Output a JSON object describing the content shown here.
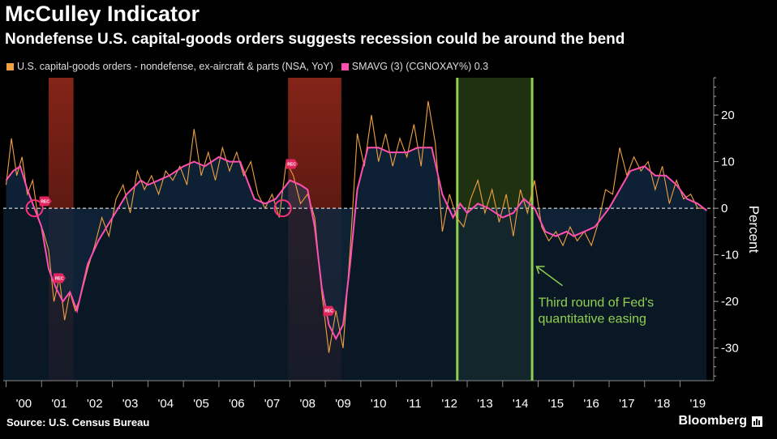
{
  "title": "McCulley Indicator",
  "subtitle": "Nondefense U.S. capital-goods orders suggests recession could be around the bend",
  "legend": [
    {
      "label": "U.S. capital-goods orders - nondefense, ex-aircraft & parts (NSA, YoY)",
      "color": "#f0a040"
    },
    {
      "label": "SMAVG (3) (CGNOXAY%) 0.3",
      "color": "#ff4fb0"
    }
  ],
  "source": "Source: U.S. Census Bureau",
  "brand": "Bloomberg",
  "colors": {
    "raw": "#f0a040",
    "smooth": "#ff4fb0",
    "area": "#0e2236",
    "recession": "#b03020",
    "qe_band": "#3a5a20",
    "qe_line": "#8fd14f",
    "marker": "#ff2f7a"
  },
  "chart_data": {
    "type": "line",
    "title": "McCulley Indicator",
    "ylabel": "Percent",
    "ylim": [
      -37,
      28
    ],
    "yticks": [
      20,
      10,
      0,
      -10,
      -20,
      -30
    ],
    "xlim": [
      1999.92,
      2019.95
    ],
    "xtick_labels": [
      "'00",
      "'01",
      "'02",
      "'03",
      "'04",
      "'05",
      "'06",
      "'07",
      "'08",
      "'09",
      "'10",
      "'11",
      "'12",
      "'13",
      "'14",
      "'15",
      "'16",
      "'17",
      "'18",
      "'19"
    ],
    "grid": false,
    "legend_position": "top-left",
    "series": [
      {
        "name": "SMAVG (3) (CGNOXAY%) 0.3",
        "x": [
          2000.0,
          2000.2,
          2000.4,
          2000.6,
          2000.8,
          2001.0,
          2001.2,
          2001.4,
          2001.6,
          2001.8,
          2002.0,
          2002.3,
          2002.6,
          2003.0,
          2003.4,
          2003.8,
          2004.0,
          2004.3,
          2004.6,
          2005.0,
          2005.3,
          2005.6,
          2006.0,
          2006.3,
          2006.6,
          2007.0,
          2007.3,
          2007.6,
          2007.8,
          2008.0,
          2008.3,
          2008.5,
          2008.7,
          2008.9,
          2009.1,
          2009.3,
          2009.5,
          2009.7,
          2009.9,
          2010.2,
          2010.5,
          2010.8,
          2011.0,
          2011.3,
          2011.6,
          2012.0,
          2012.3,
          2012.6,
          2012.8,
          2013.0,
          2013.3,
          2013.6,
          2014.0,
          2014.3,
          2014.6,
          2014.9,
          2015.2,
          2015.5,
          2015.8,
          2016.0,
          2016.3,
          2016.6,
          2017.0,
          2017.3,
          2017.6,
          2018.0,
          2018.3,
          2018.6,
          2018.9,
          2019.2,
          2019.5,
          2019.75
        ],
        "values": [
          6,
          8,
          9,
          4,
          0,
          -4,
          -13,
          -17,
          -20,
          -18,
          -22,
          -12,
          -7,
          -2,
          3,
          6,
          5,
          6,
          7,
          9,
          10,
          9,
          11,
          10,
          10,
          2,
          1,
          2,
          4,
          6,
          5,
          4,
          -4,
          -17,
          -25,
          -28,
          -25,
          -12,
          4,
          13,
          13,
          12,
          12,
          12,
          13,
          13,
          3,
          -2,
          1,
          -1,
          1,
          0,
          -2,
          -1,
          2,
          0,
          -5,
          -6,
          -5,
          -6,
          -5,
          -4,
          0,
          4,
          8,
          9,
          7,
          7,
          5,
          2,
          1,
          -0.5
        ]
      },
      {
        "name": "U.S. capital-goods orders - nondefense, ex-aircraft & parts (NSA, YoY)",
        "x": [
          2000.0,
          2000.15,
          2000.3,
          2000.45,
          2000.6,
          2000.75,
          2000.9,
          2001.05,
          2001.2,
          2001.35,
          2001.5,
          2001.65,
          2001.8,
          2001.95,
          2002.1,
          2002.3,
          2002.5,
          2002.7,
          2002.9,
          2003.1,
          2003.3,
          2003.5,
          2003.7,
          2003.9,
          2004.1,
          2004.3,
          2004.5,
          2004.7,
          2004.9,
          2005.1,
          2005.3,
          2005.5,
          2005.7,
          2005.9,
          2006.1,
          2006.3,
          2006.5,
          2006.7,
          2006.9,
          2007.1,
          2007.3,
          2007.5,
          2007.7,
          2007.9,
          2008.1,
          2008.3,
          2008.5,
          2008.7,
          2008.9,
          2009.1,
          2009.3,
          2009.5,
          2009.7,
          2009.9,
          2010.1,
          2010.3,
          2010.5,
          2010.7,
          2010.9,
          2011.1,
          2011.3,
          2011.5,
          2011.7,
          2011.9,
          2012.1,
          2012.3,
          2012.5,
          2012.7,
          2012.9,
          2013.1,
          2013.3,
          2013.5,
          2013.7,
          2013.9,
          2014.1,
          2014.3,
          2014.5,
          2014.7,
          2014.9,
          2015.1,
          2015.3,
          2015.5,
          2015.7,
          2015.9,
          2016.1,
          2016.3,
          2016.5,
          2016.7,
          2016.9,
          2017.1,
          2017.3,
          2017.5,
          2017.7,
          2017.9,
          2018.1,
          2018.3,
          2018.5,
          2018.7,
          2018.9,
          2019.1,
          2019.3,
          2019.5,
          2019.7
        ],
        "values": [
          5,
          15,
          7,
          11,
          3,
          6,
          -2,
          -5,
          -9,
          -20,
          -15,
          -24,
          -18,
          -22,
          -19,
          -13,
          -8,
          -2,
          -6,
          2,
          5,
          -1,
          8,
          4,
          7,
          3,
          8,
          6,
          9,
          5,
          17,
          7,
          12,
          6,
          13,
          8,
          12,
          7,
          10,
          3,
          0,
          3,
          -2,
          10,
          7,
          1,
          3,
          -2,
          -18,
          -31,
          -22,
          -30,
          -9,
          16,
          9,
          20,
          10,
          16,
          9,
          15,
          11,
          18,
          9,
          23,
          14,
          -5,
          3,
          -2,
          -4,
          2,
          6,
          -1,
          4,
          -3,
          3,
          -6,
          4,
          -1,
          6,
          -4,
          -7,
          -5,
          -8,
          -4,
          -7,
          -5,
          -8,
          -3,
          4,
          3,
          13,
          7,
          11,
          8,
          10,
          4,
          9,
          1,
          6,
          2,
          3,
          0,
          0
        ]
      }
    ],
    "recessions": [
      [
        2001.2,
        2001.9
      ],
      [
        2007.95,
        2009.45
      ]
    ],
    "qe_period": [
      2012.72,
      2014.83
    ],
    "circle_markers": [
      {
        "x": 2000.8,
        "y": 0
      },
      {
        "x": 2007.8,
        "y": 0
      }
    ],
    "rec_labels": [
      {
        "text": "REC",
        "x": 2001.1,
        "y": 1.5
      },
      {
        "text": "REC",
        "x": 2001.5,
        "y": -15
      },
      {
        "text": "REC",
        "x": 2008.05,
        "y": 9.5
      },
      {
        "text": "REC",
        "x": 2009.1,
        "y": -22
      }
    ],
    "annotation": {
      "text": [
        "Third round of Fed's",
        "quantitative easing"
      ],
      "x": 2015.0,
      "y": -18
    }
  }
}
